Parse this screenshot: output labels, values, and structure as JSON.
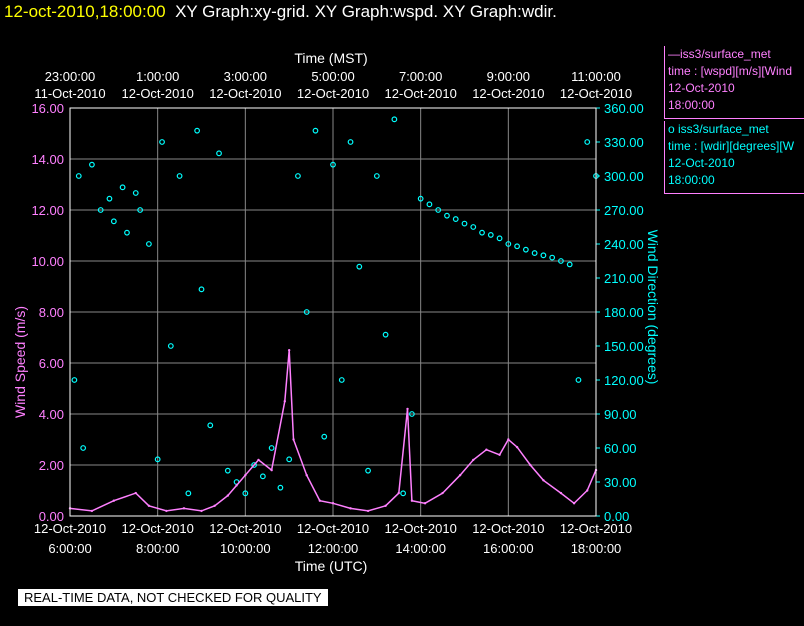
{
  "title": {
    "timestamp": "12-oct-2010,18:00:00",
    "graphs": "XY Graph:xy-grid.  XY Graph:wspd.  XY Graph:wdir."
  },
  "legend": {
    "wspd": {
      "line1": "—iss3/surface_met",
      "line2": "time : [wspd][m/s][Wind",
      "line3": "12-Oct-2010",
      "line4": "18:00:00"
    },
    "wdir": {
      "line1": "o  iss3/surface_met",
      "line2": "time : [wdir][degrees][W",
      "line3": "12-Oct-2010",
      "line4": "18:00:00"
    }
  },
  "footer_note": "REAL-TIME DATA, NOT CHECKED FOR QUALITY",
  "colors": {
    "wspd": "#ff80ff",
    "wdir": "#00ffff",
    "axis": "#ffffff",
    "title_timestamp": "#ffff00"
  },
  "chart_data": {
    "type": "scatter",
    "top_axis": {
      "label": "Time (MST)",
      "ticks": [
        {
          "time": "23:00:00",
          "date": "11-Oct-2010"
        },
        {
          "time": "1:00:00",
          "date": "12-Oct-2010"
        },
        {
          "time": "3:00:00",
          "date": "12-Oct-2010"
        },
        {
          "time": "5:00:00",
          "date": "12-Oct-2010"
        },
        {
          "time": "7:00:00",
          "date": "12-Oct-2010"
        },
        {
          "time": "9:00:00",
          "date": "12-Oct-2010"
        },
        {
          "time": "11:00:00",
          "date": "12-Oct-2010"
        }
      ]
    },
    "bottom_axis": {
      "label": "Time (UTC)",
      "ticks": [
        {
          "date": "12-Oct-2010",
          "time": "6:00:00"
        },
        {
          "date": "12-Oct-2010",
          "time": "8:00:00"
        },
        {
          "date": "12-Oct-2010",
          "time": "10:00:00"
        },
        {
          "date": "12-Oct-2010",
          "time": "12:00:00"
        },
        {
          "date": "12-Oct-2010",
          "time": "14:00:00"
        },
        {
          "date": "12-Oct-2010",
          "time": "16:00:00"
        },
        {
          "date": "12-Oct-2010",
          "time": "18:00:00"
        }
      ],
      "range_utc_hours": [
        6,
        18
      ]
    },
    "left_axis": {
      "label": "Wind Speed (m/s)",
      "range": [
        0,
        16
      ],
      "ticks": [
        "0.00",
        "2.00",
        "4.00",
        "6.00",
        "8.00",
        "10.00",
        "12.00",
        "14.00",
        "16.00"
      ]
    },
    "right_axis": {
      "label": "Wind Direction (degrees)",
      "range": [
        0,
        360
      ],
      "ticks": [
        "0.00",
        "30.00",
        "60.00",
        "90.00",
        "120.00",
        "150.00",
        "180.00",
        "210.00",
        "240.00",
        "270.00",
        "300.00",
        "330.00",
        "360.00"
      ]
    },
    "grid": true,
    "series": [
      {
        "name": "iss3/surface_met time : [wspd][m/s]",
        "style": "line",
        "axis": "left",
        "points_utc_hour_value": [
          [
            6.0,
            0.3
          ],
          [
            6.5,
            0.2
          ],
          [
            7.0,
            0.6
          ],
          [
            7.5,
            0.9
          ],
          [
            7.8,
            0.4
          ],
          [
            8.2,
            0.2
          ],
          [
            8.6,
            0.3
          ],
          [
            9.0,
            0.2
          ],
          [
            9.3,
            0.4
          ],
          [
            9.6,
            0.8
          ],
          [
            9.8,
            1.2
          ],
          [
            10.0,
            1.6
          ],
          [
            10.3,
            2.2
          ],
          [
            10.6,
            1.8
          ],
          [
            10.9,
            4.5
          ],
          [
            11.0,
            6.5
          ],
          [
            11.1,
            3.0
          ],
          [
            11.4,
            1.6
          ],
          [
            11.7,
            0.6
          ],
          [
            12.0,
            0.5
          ],
          [
            12.4,
            0.3
          ],
          [
            12.8,
            0.2
          ],
          [
            13.2,
            0.4
          ],
          [
            13.5,
            0.9
          ],
          [
            13.7,
            4.2
          ],
          [
            13.8,
            0.6
          ],
          [
            14.1,
            0.5
          ],
          [
            14.5,
            0.9
          ],
          [
            14.9,
            1.6
          ],
          [
            15.2,
            2.2
          ],
          [
            15.5,
            2.6
          ],
          [
            15.8,
            2.4
          ],
          [
            16.0,
            3.0
          ],
          [
            16.2,
            2.7
          ],
          [
            16.5,
            2.0
          ],
          [
            16.8,
            1.4
          ],
          [
            17.2,
            0.9
          ],
          [
            17.5,
            0.5
          ],
          [
            17.8,
            1.0
          ],
          [
            18.0,
            1.8
          ]
        ]
      },
      {
        "name": "iss3/surface_met time : [wdir][degrees]",
        "style": "circles",
        "axis": "right",
        "points_utc_hour_value": [
          [
            6.1,
            120
          ],
          [
            6.2,
            300
          ],
          [
            6.3,
            60
          ],
          [
            6.5,
            310
          ],
          [
            6.7,
            270
          ],
          [
            6.9,
            280
          ],
          [
            7.0,
            260
          ],
          [
            7.2,
            290
          ],
          [
            7.3,
            250
          ],
          [
            7.5,
            285
          ],
          [
            7.6,
            270
          ],
          [
            7.8,
            240
          ],
          [
            8.0,
            50
          ],
          [
            8.1,
            330
          ],
          [
            8.3,
            150
          ],
          [
            8.5,
            300
          ],
          [
            8.7,
            20
          ],
          [
            8.9,
            340
          ],
          [
            9.0,
            200
          ],
          [
            9.2,
            80
          ],
          [
            9.4,
            320
          ],
          [
            9.6,
            40
          ],
          [
            9.8,
            30
          ],
          [
            10.0,
            20
          ],
          [
            10.2,
            45
          ],
          [
            10.4,
            35
          ],
          [
            10.6,
            60
          ],
          [
            10.8,
            25
          ],
          [
            11.0,
            50
          ],
          [
            11.2,
            300
          ],
          [
            11.4,
            180
          ],
          [
            11.6,
            340
          ],
          [
            11.8,
            70
          ],
          [
            12.0,
            310
          ],
          [
            12.2,
            120
          ],
          [
            12.4,
            330
          ],
          [
            12.6,
            220
          ],
          [
            12.8,
            40
          ],
          [
            13.0,
            300
          ],
          [
            13.2,
            160
          ],
          [
            13.4,
            350
          ],
          [
            13.6,
            20
          ],
          [
            13.8,
            90
          ],
          [
            14.0,
            280
          ],
          [
            14.2,
            275
          ],
          [
            14.4,
            270
          ],
          [
            14.6,
            265
          ],
          [
            14.8,
            262
          ],
          [
            15.0,
            258
          ],
          [
            15.2,
            255
          ],
          [
            15.4,
            250
          ],
          [
            15.6,
            248
          ],
          [
            15.8,
            245
          ],
          [
            16.0,
            240
          ],
          [
            16.2,
            238
          ],
          [
            16.4,
            235
          ],
          [
            16.6,
            232
          ],
          [
            16.8,
            230
          ],
          [
            17.0,
            228
          ],
          [
            17.2,
            225
          ],
          [
            17.4,
            222
          ],
          [
            17.6,
            120
          ],
          [
            17.8,
            330
          ],
          [
            18.0,
            300
          ]
        ]
      }
    ]
  }
}
